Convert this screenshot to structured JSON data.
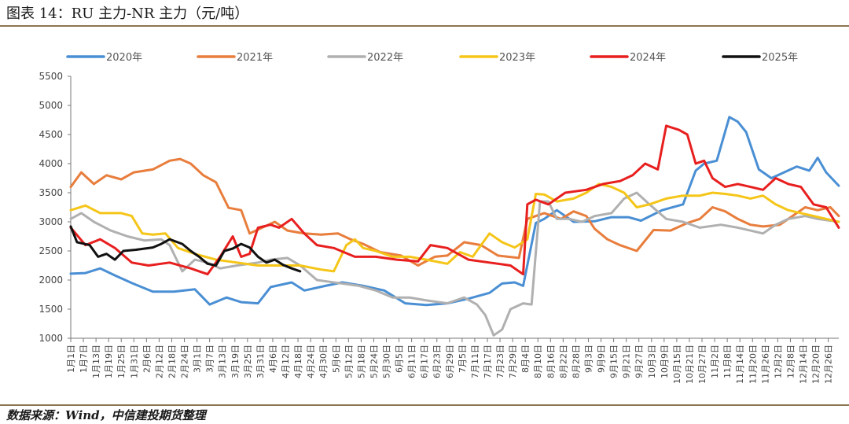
{
  "header": {
    "title": "图表 14：RU 主力-NR 主力（元/吨）"
  },
  "footer": {
    "source": "数据来源：Wind，中信建投期货整理"
  },
  "chart_data": {
    "type": "line",
    "title": "图表 14：RU 主力-NR 主力（元/吨）",
    "xlabel": "",
    "ylabel": "",
    "ylim": [
      1000,
      5500
    ],
    "yticks": [
      1000,
      1500,
      2000,
      2500,
      3000,
      3500,
      4000,
      4500,
      5000,
      5500
    ],
    "legend_position": "top",
    "grid": false,
    "x_range_days": [
      1,
      366
    ],
    "x_tick_labels": [
      "1月1日",
      "1月7日",
      "1月13日",
      "1月19日",
      "1月25日",
      "1月31日",
      "2月6日",
      "2月12日",
      "2月18日",
      "2月24日",
      "3月1日",
      "3月7日",
      "3月13日",
      "3月19日",
      "3月25日",
      "3月31日",
      "4月6日",
      "4月12日",
      "4月18日",
      "4月24日",
      "4月30日",
      "5月6日",
      "5月12日",
      "5月18日",
      "5月24日",
      "5月30日",
      "6月5日",
      "6月11日",
      "6月17日",
      "6月23日",
      "6月29日",
      "7月5日",
      "7月11日",
      "7月17日",
      "7月23日",
      "7月29日",
      "8月4日",
      "8月10日",
      "8月16日",
      "8月22日",
      "8月28日",
      "9月3日",
      "9月9日",
      "9月15日",
      "9月21日",
      "9月27日",
      "10月3日",
      "10月9日",
      "10月15日",
      "10月21日",
      "10月27日",
      "11月2日",
      "11月8日",
      "11月14日",
      "11月20日",
      "11月26日",
      "12月2日",
      "12月8日",
      "12月14日",
      "12月20日",
      "12月26日"
    ],
    "series": [
      {
        "name": "2020年",
        "color": "#4a8fd4",
        "points": [
          [
            1,
            2110
          ],
          [
            8,
            2120
          ],
          [
            15,
            2200
          ],
          [
            22,
            2080
          ],
          [
            30,
            1950
          ],
          [
            40,
            1800
          ],
          [
            50,
            1800
          ],
          [
            60,
            1840
          ],
          [
            67,
            1580
          ],
          [
            75,
            1700
          ],
          [
            82,
            1620
          ],
          [
            90,
            1600
          ],
          [
            96,
            1880
          ],
          [
            106,
            1960
          ],
          [
            112,
            1820
          ],
          [
            122,
            1900
          ],
          [
            130,
            1960
          ],
          [
            140,
            1900
          ],
          [
            150,
            1820
          ],
          [
            160,
            1600
          ],
          [
            170,
            1570
          ],
          [
            180,
            1600
          ],
          [
            190,
            1680
          ],
          [
            200,
            1780
          ],
          [
            206,
            1940
          ],
          [
            212,
            1960
          ],
          [
            216,
            1900
          ],
          [
            222,
            2980
          ],
          [
            226,
            3050
          ],
          [
            232,
            3200
          ],
          [
            240,
            3000
          ],
          [
            250,
            3010
          ],
          [
            258,
            3080
          ],
          [
            266,
            3080
          ],
          [
            272,
            3020
          ],
          [
            282,
            3200
          ],
          [
            292,
            3300
          ],
          [
            298,
            3880
          ],
          [
            302,
            4000
          ],
          [
            308,
            4050
          ],
          [
            314,
            4800
          ],
          [
            318,
            4720
          ],
          [
            322,
            4540
          ],
          [
            328,
            3900
          ],
          [
            334,
            3750
          ],
          [
            340,
            3850
          ],
          [
            346,
            3950
          ],
          [
            352,
            3880
          ],
          [
            356,
            4100
          ],
          [
            360,
            3850
          ],
          [
            366,
            3620
          ]
        ]
      },
      {
        "name": "2021年",
        "color": "#e87d3c",
        "points": [
          [
            1,
            3600
          ],
          [
            6,
            3850
          ],
          [
            12,
            3650
          ],
          [
            18,
            3800
          ],
          [
            25,
            3730
          ],
          [
            31,
            3850
          ],
          [
            40,
            3900
          ],
          [
            48,
            4050
          ],
          [
            53,
            4080
          ],
          [
            58,
            4000
          ],
          [
            64,
            3800
          ],
          [
            70,
            3680
          ],
          [
            76,
            3240
          ],
          [
            82,
            3200
          ],
          [
            86,
            2800
          ],
          [
            92,
            2900
          ],
          [
            98,
            3000
          ],
          [
            104,
            2850
          ],
          [
            112,
            2800
          ],
          [
            120,
            2780
          ],
          [
            128,
            2800
          ],
          [
            134,
            2700
          ],
          [
            140,
            2620
          ],
          [
            148,
            2480
          ],
          [
            158,
            2420
          ],
          [
            166,
            2250
          ],
          [
            174,
            2400
          ],
          [
            180,
            2420
          ],
          [
            188,
            2650
          ],
          [
            196,
            2600
          ],
          [
            204,
            2420
          ],
          [
            214,
            2380
          ],
          [
            218,
            3050
          ],
          [
            226,
            3150
          ],
          [
            234,
            3050
          ],
          [
            240,
            3180
          ],
          [
            246,
            3100
          ],
          [
            250,
            2880
          ],
          [
            256,
            2700
          ],
          [
            262,
            2600
          ],
          [
            270,
            2500
          ],
          [
            278,
            2860
          ],
          [
            286,
            2850
          ],
          [
            294,
            2980
          ],
          [
            300,
            3050
          ],
          [
            306,
            3250
          ],
          [
            312,
            3180
          ],
          [
            318,
            3050
          ],
          [
            324,
            2950
          ],
          [
            330,
            2920
          ],
          [
            338,
            2950
          ],
          [
            344,
            3100
          ],
          [
            350,
            3250
          ],
          [
            356,
            3200
          ],
          [
            362,
            3250
          ],
          [
            366,
            3100
          ]
        ]
      },
      {
        "name": "2022年",
        "color": "#b0b0b0",
        "points": [
          [
            1,
            3050
          ],
          [
            6,
            3150
          ],
          [
            12,
            3000
          ],
          [
            20,
            2850
          ],
          [
            28,
            2750
          ],
          [
            36,
            2680
          ],
          [
            44,
            2700
          ],
          [
            48,
            2600
          ],
          [
            54,
            2150
          ],
          [
            60,
            2350
          ],
          [
            66,
            2300
          ],
          [
            72,
            2200
          ],
          [
            80,
            2250
          ],
          [
            90,
            2300
          ],
          [
            96,
            2350
          ],
          [
            104,
            2380
          ],
          [
            110,
            2250
          ],
          [
            118,
            2000
          ],
          [
            128,
            1950
          ],
          [
            138,
            1900
          ],
          [
            146,
            1820
          ],
          [
            154,
            1700
          ],
          [
            162,
            1700
          ],
          [
            170,
            1650
          ],
          [
            180,
            1600
          ],
          [
            188,
            1700
          ],
          [
            194,
            1580
          ],
          [
            198,
            1400
          ],
          [
            202,
            1050
          ],
          [
            206,
            1150
          ],
          [
            210,
            1500
          ],
          [
            216,
            1600
          ],
          [
            220,
            1580
          ],
          [
            224,
            3350
          ],
          [
            228,
            3350
          ],
          [
            232,
            3050
          ],
          [
            238,
            3050
          ],
          [
            244,
            3000
          ],
          [
            250,
            3100
          ],
          [
            258,
            3150
          ],
          [
            264,
            3400
          ],
          [
            270,
            3500
          ],
          [
            276,
            3300
          ],
          [
            284,
            3050
          ],
          [
            292,
            3000
          ],
          [
            300,
            2900
          ],
          [
            310,
            2950
          ],
          [
            318,
            2900
          ],
          [
            324,
            2850
          ],
          [
            330,
            2800
          ],
          [
            336,
            2950
          ],
          [
            342,
            3050
          ],
          [
            350,
            3100
          ],
          [
            356,
            3050
          ],
          [
            366,
            3000
          ]
        ]
      },
      {
        "name": "2023年",
        "color": "#f5c518",
        "points": [
          [
            1,
            3200
          ],
          [
            8,
            3280
          ],
          [
            15,
            3150
          ],
          [
            25,
            3150
          ],
          [
            30,
            3100
          ],
          [
            35,
            2800
          ],
          [
            40,
            2780
          ],
          [
            46,
            2800
          ],
          [
            52,
            2550
          ],
          [
            60,
            2450
          ],
          [
            70,
            2350
          ],
          [
            80,
            2300
          ],
          [
            90,
            2250
          ],
          [
            100,
            2250
          ],
          [
            110,
            2250
          ],
          [
            120,
            2180
          ],
          [
            126,
            2150
          ],
          [
            132,
            2600
          ],
          [
            136,
            2700
          ],
          [
            140,
            2550
          ],
          [
            146,
            2500
          ],
          [
            154,
            2400
          ],
          [
            162,
            2400
          ],
          [
            170,
            2350
          ],
          [
            180,
            2280
          ],
          [
            186,
            2480
          ],
          [
            192,
            2400
          ],
          [
            200,
            2800
          ],
          [
            206,
            2650
          ],
          [
            212,
            2560
          ],
          [
            218,
            2700
          ],
          [
            222,
            3480
          ],
          [
            226,
            3470
          ],
          [
            232,
            3350
          ],
          [
            240,
            3400
          ],
          [
            246,
            3500
          ],
          [
            252,
            3650
          ],
          [
            258,
            3600
          ],
          [
            264,
            3500
          ],
          [
            270,
            3250
          ],
          [
            276,
            3300
          ],
          [
            284,
            3400
          ],
          [
            292,
            3450
          ],
          [
            300,
            3450
          ],
          [
            306,
            3500
          ],
          [
            312,
            3480
          ],
          [
            318,
            3450
          ],
          [
            324,
            3400
          ],
          [
            330,
            3450
          ],
          [
            336,
            3300
          ],
          [
            342,
            3200
          ],
          [
            348,
            3150
          ],
          [
            354,
            3100
          ],
          [
            360,
            3050
          ],
          [
            366,
            3000
          ]
        ]
      },
      {
        "name": "2024年",
        "color": "#e81f1f",
        "points": [
          [
            1,
            2900
          ],
          [
            8,
            2600
          ],
          [
            15,
            2700
          ],
          [
            22,
            2550
          ],
          [
            30,
            2300
          ],
          [
            38,
            2250
          ],
          [
            48,
            2300
          ],
          [
            58,
            2200
          ],
          [
            66,
            2100
          ],
          [
            72,
            2400
          ],
          [
            78,
            2750
          ],
          [
            82,
            2400
          ],
          [
            86,
            2450
          ],
          [
            90,
            2900
          ],
          [
            96,
            2950
          ],
          [
            100,
            2900
          ],
          [
            106,
            3050
          ],
          [
            112,
            2800
          ],
          [
            118,
            2600
          ],
          [
            126,
            2550
          ],
          [
            136,
            2400
          ],
          [
            146,
            2400
          ],
          [
            156,
            2350
          ],
          [
            166,
            2320
          ],
          [
            172,
            2600
          ],
          [
            180,
            2550
          ],
          [
            190,
            2350
          ],
          [
            200,
            2300
          ],
          [
            210,
            2250
          ],
          [
            216,
            2100
          ],
          [
            218,
            3300
          ],
          [
            222,
            3380
          ],
          [
            228,
            3300
          ],
          [
            236,
            3500
          ],
          [
            246,
            3550
          ],
          [
            254,
            3650
          ],
          [
            262,
            3700
          ],
          [
            268,
            3800
          ],
          [
            274,
            4000
          ],
          [
            280,
            3900
          ],
          [
            284,
            4650
          ],
          [
            290,
            4580
          ],
          [
            294,
            4500
          ],
          [
            298,
            4000
          ],
          [
            302,
            4050
          ],
          [
            306,
            3750
          ],
          [
            312,
            3600
          ],
          [
            318,
            3650
          ],
          [
            324,
            3600
          ],
          [
            330,
            3550
          ],
          [
            336,
            3750
          ],
          [
            342,
            3650
          ],
          [
            348,
            3600
          ],
          [
            354,
            3300
          ],
          [
            360,
            3250
          ],
          [
            366,
            2900
          ]
        ]
      },
      {
        "name": "2025年",
        "color": "#111111",
        "points": [
          [
            1,
            2920
          ],
          [
            4,
            2650
          ],
          [
            10,
            2600
          ],
          [
            14,
            2400
          ],
          [
            18,
            2450
          ],
          [
            22,
            2350
          ],
          [
            26,
            2500
          ],
          [
            32,
            2520
          ],
          [
            40,
            2560
          ],
          [
            44,
            2620
          ],
          [
            48,
            2700
          ],
          [
            54,
            2620
          ],
          [
            58,
            2500
          ],
          [
            62,
            2400
          ],
          [
            66,
            2280
          ],
          [
            70,
            2250
          ],
          [
            74,
            2500
          ],
          [
            78,
            2540
          ],
          [
            82,
            2620
          ],
          [
            86,
            2560
          ],
          [
            90,
            2400
          ],
          [
            94,
            2300
          ],
          [
            98,
            2350
          ],
          [
            102,
            2260
          ],
          [
            106,
            2200
          ],
          [
            110,
            2150
          ]
        ]
      }
    ]
  }
}
